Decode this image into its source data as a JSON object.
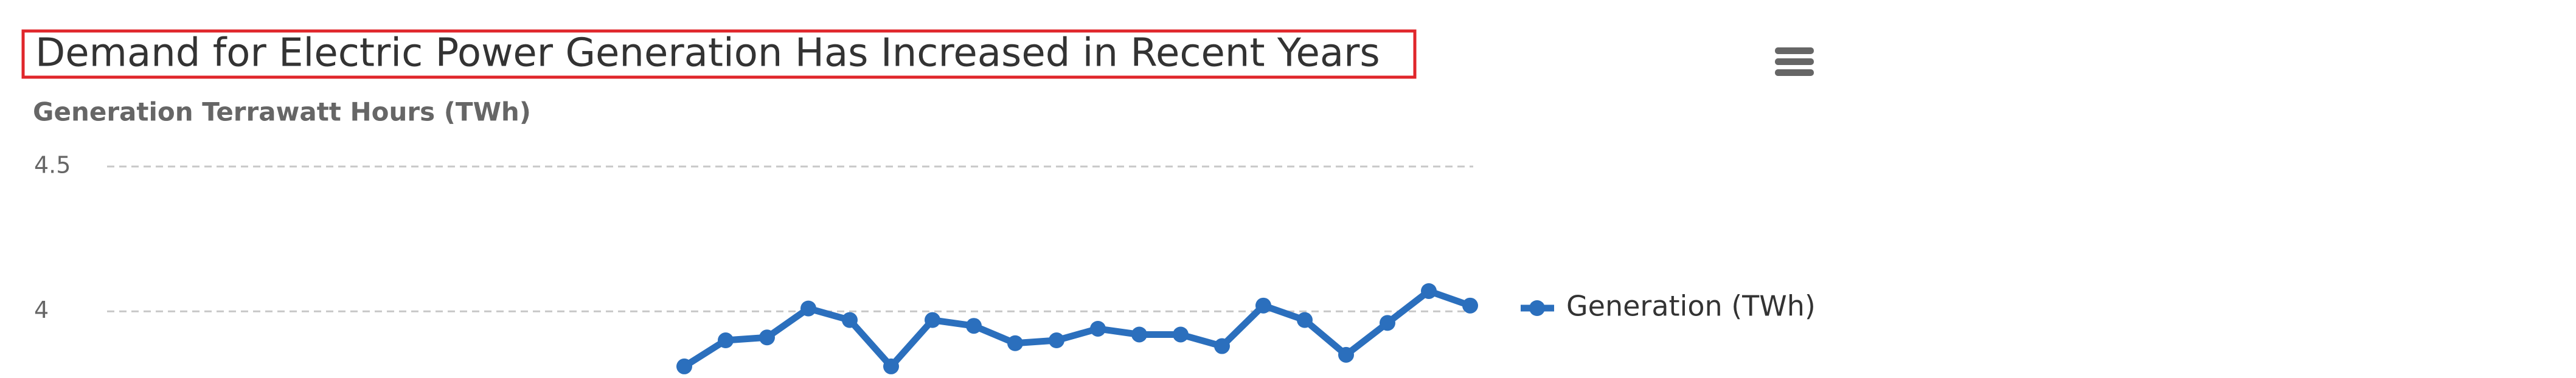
{
  "chart_data": {
    "type": "line",
    "title": "Demand for Electric Power Generation Has Increased in Recent Years",
    "y_axis_label": "Generation Terrawatt Hours (TWh)",
    "categories": [
      null,
      null,
      null,
      null,
      null,
      null,
      null,
      null,
      null,
      null,
      null,
      null,
      null,
      null,
      null,
      null,
      null,
      null,
      null,
      null
    ],
    "series": [
      {
        "name": "Generation (TWh)",
        "color": "#2b6fbd",
        "values": [
          3.81,
          3.9,
          3.91,
          4.01,
          3.97,
          3.81,
          3.97,
          3.95,
          3.89,
          3.9,
          3.94,
          3.92,
          3.92,
          3.88,
          4.02,
          3.97,
          3.85,
          3.96,
          4.07,
          4.02
        ]
      }
    ],
    "ylim": [
      3.77,
      4.5
    ],
    "yticks": [
      4,
      4.5
    ],
    "grid": true,
    "legend": "right"
  }
}
